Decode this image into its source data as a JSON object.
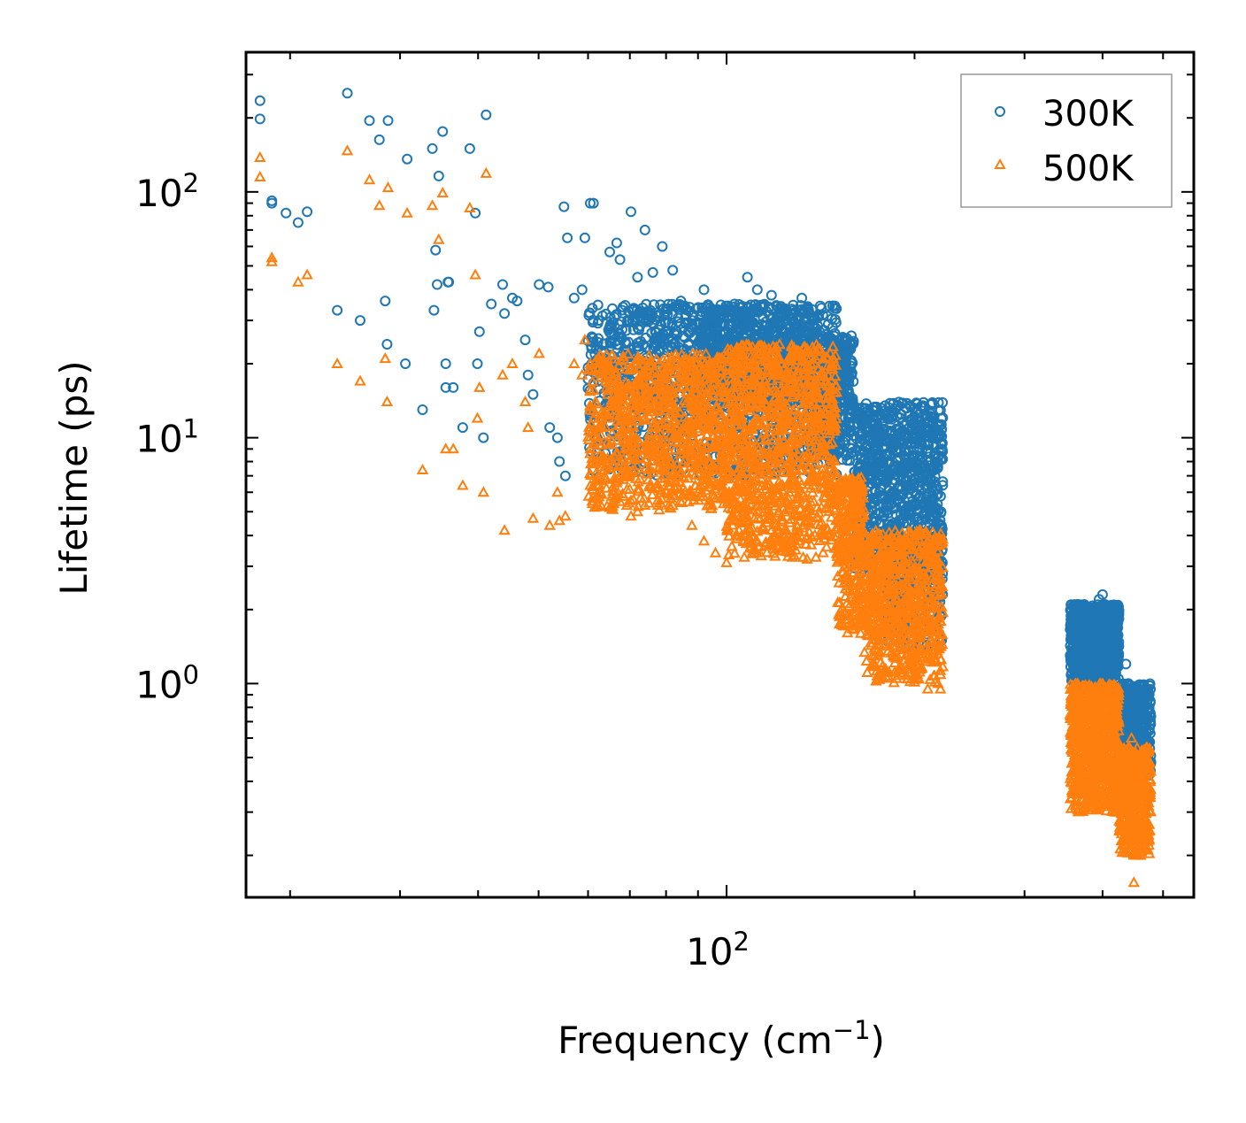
{
  "chart_data": {
    "type": "scatter",
    "title": "",
    "xlabel": "Frequency (cm",
    "xlabel_sup": "−1",
    "xlabel_close": ")",
    "ylabel": "Lifetime (ps)",
    "xscale": "log",
    "yscale": "log",
    "xlim": [
      17,
      560
    ],
    "ylim": [
      0.135,
      370
    ],
    "x_major_ticks": [
      {
        "value": 100,
        "base": "10",
        "exp": "2"
      }
    ],
    "y_major_ticks": [
      {
        "value": 1,
        "base": "10",
        "exp": "0"
      },
      {
        "value": 10,
        "base": "10",
        "exp": "1"
      },
      {
        "value": 100,
        "base": "10",
        "exp": "2"
      }
    ],
    "legend_position": "top-right",
    "series": [
      {
        "name": "300K",
        "marker": "circle",
        "color": "#1f77b4",
        "points": [
          [
            17.9,
            235
          ],
          [
            17.9,
            198
          ],
          [
            18.7,
            92
          ],
          [
            18.7,
            90
          ],
          [
            19.7,
            82
          ],
          [
            20.6,
            75
          ],
          [
            21.3,
            83
          ],
          [
            23.8,
            33
          ],
          [
            24.7,
            252
          ],
          [
            25.9,
            30
          ],
          [
            26.8,
            195
          ],
          [
            27.8,
            163
          ],
          [
            28.7,
            195
          ],
          [
            28.4,
            36
          ],
          [
            28.6,
            24
          ],
          [
            30.8,
            136
          ],
          [
            30.6,
            20
          ],
          [
            32.6,
            13
          ],
          [
            33.8,
            150
          ],
          [
            34.6,
            116
          ],
          [
            34.2,
            58
          ],
          [
            35.1,
            176
          ],
          [
            35.8,
            43
          ],
          [
            35.9,
            43
          ],
          [
            35.5,
            20
          ],
          [
            34.4,
            42
          ],
          [
            34.0,
            33
          ],
          [
            35.5,
            16
          ],
          [
            36.5,
            16
          ],
          [
            37.8,
            11
          ],
          [
            38.8,
            150
          ],
          [
            39.6,
            82
          ],
          [
            40.2,
            27
          ],
          [
            40.8,
            10
          ],
          [
            41.2,
            206
          ],
          [
            39.9,
            20
          ],
          [
            42.0,
            35
          ],
          [
            43.8,
            42
          ],
          [
            44.1,
            32
          ],
          [
            45.4,
            37
          ],
          [
            46.2,
            36
          ],
          [
            47.6,
            25
          ],
          [
            48.1,
            18
          ],
          [
            49.0,
            15
          ],
          [
            50.1,
            42
          ],
          [
            51.8,
            41
          ],
          [
            52.1,
            11
          ],
          [
            53.6,
            10
          ],
          [
            54.0,
            8
          ],
          [
            55.2,
            7
          ],
          [
            54.9,
            87
          ],
          [
            55.6,
            65
          ],
          [
            57.0,
            37
          ],
          [
            58.7,
            40
          ],
          [
            59.3,
            65
          ],
          [
            60.5,
            90
          ],
          [
            61.2,
            90
          ],
          [
            62.4,
            30
          ],
          [
            63.8,
            22
          ],
          [
            65.0,
            57
          ],
          [
            66.7,
            62
          ],
          [
            67.5,
            53
          ],
          [
            70.3,
            83
          ],
          [
            72.0,
            45
          ],
          [
            74.0,
            70
          ],
          [
            76.2,
            47
          ],
          [
            78.9,
            60
          ],
          [
            82.0,
            48
          ],
          [
            84.5,
            36
          ],
          [
            88.0,
            30
          ],
          [
            92.0,
            40
          ],
          [
            95.0,
            28
          ],
          [
            99.0,
            33
          ],
          [
            103.0,
            35
          ],
          [
            108.0,
            45
          ],
          [
            112.0,
            40
          ],
          [
            118.0,
            38
          ],
          [
            125.0,
            30
          ],
          [
            132.0,
            37
          ],
          [
            140.0,
            25
          ],
          [
            148.0,
            20
          ],
          [
            155.0,
            14
          ],
          [
            162.0,
            12
          ],
          [
            170.0,
            10
          ],
          [
            178.0,
            8
          ],
          [
            186.0,
            6
          ],
          [
            194.0,
            4.8
          ],
          [
            200.0,
            4.0
          ],
          [
            206.0,
            3.4
          ],
          [
            212.0,
            3.2
          ],
          [
            218.0,
            2.8
          ],
          [
            219.0,
            1.6
          ],
          [
            221.0,
            1.5
          ],
          [
            355,
            1.3
          ],
          [
            360,
            1.5
          ],
          [
            365,
            2.1
          ],
          [
            370,
            1.8
          ],
          [
            375,
            1.4
          ],
          [
            380,
            2.0
          ],
          [
            385,
            1.7
          ],
          [
            390,
            1.2
          ],
          [
            395,
            2.2
          ],
          [
            400,
            2.3
          ],
          [
            405,
            1.9
          ],
          [
            410,
            1.6
          ],
          [
            415,
            1.4
          ],
          [
            420,
            1.1
          ],
          [
            425,
            1.0
          ],
          [
            428,
            0.85
          ],
          [
            432,
            0.75
          ],
          [
            436,
            1.2
          ],
          [
            440,
            1.0
          ],
          [
            445,
            0.8
          ],
          [
            450,
            0.7
          ],
          [
            455,
            0.6
          ],
          [
            460,
            0.5
          ],
          [
            465,
            0.55
          ],
          [
            470,
            0.6
          ],
          [
            475,
            0.58
          ]
        ],
        "clouds": [
          {
            "x_from": 60,
            "x_to": 150,
            "y_lo": 7,
            "y_hi": 35,
            "count": 1300
          },
          {
            "x_from": 90,
            "x_to": 140,
            "y_lo": 14,
            "y_hi": 35,
            "count": 500
          },
          {
            "x_from": 140,
            "x_to": 160,
            "y_lo": 8,
            "y_hi": 26,
            "count": 350
          },
          {
            "x_from": 160,
            "x_to": 222,
            "y_lo": 2.8,
            "y_hi": 14,
            "count": 900
          },
          {
            "x_from": 180,
            "x_to": 222,
            "y_lo": 1.4,
            "y_hi": 4,
            "count": 250
          },
          {
            "x_from": 355,
            "x_to": 425,
            "y_lo": 1.0,
            "y_hi": 2.1,
            "count": 900
          },
          {
            "x_from": 425,
            "x_to": 478,
            "y_lo": 0.42,
            "y_hi": 1.0,
            "count": 500
          }
        ]
      },
      {
        "name": "500K",
        "marker": "triangle",
        "color": "#ff7f0e",
        "points": [
          [
            17.9,
            138
          ],
          [
            17.9,
            115
          ],
          [
            18.7,
            54
          ],
          [
            18.7,
            52
          ],
          [
            20.6,
            43
          ],
          [
            21.3,
            46
          ],
          [
            23.8,
            20
          ],
          [
            24.7,
            147
          ],
          [
            25.9,
            17
          ],
          [
            26.8,
            112
          ],
          [
            27.8,
            88
          ],
          [
            28.7,
            104
          ],
          [
            28.4,
            21
          ],
          [
            28.6,
            14
          ],
          [
            30.8,
            82
          ],
          [
            32.6,
            7.4
          ],
          [
            33.8,
            88
          ],
          [
            34.6,
            64
          ],
          [
            35.1,
            99
          ],
          [
            35.5,
            9
          ],
          [
            36.5,
            9
          ],
          [
            37.8,
            6.4
          ],
          [
            38.8,
            86
          ],
          [
            39.6,
            46
          ],
          [
            40.2,
            16
          ],
          [
            40.8,
            6
          ],
          [
            41.2,
            119
          ],
          [
            39.9,
            12
          ],
          [
            43.8,
            18
          ],
          [
            44.1,
            4.2
          ],
          [
            45.4,
            20
          ],
          [
            47.6,
            14
          ],
          [
            48.1,
            11
          ],
          [
            49.0,
            4.7
          ],
          [
            50.1,
            22
          ],
          [
            52.1,
            4.4
          ],
          [
            53.6,
            6
          ],
          [
            54.0,
            4.6
          ],
          [
            55.2,
            4.8
          ],
          [
            57.0,
            20
          ],
          [
            58.7,
            18
          ],
          [
            59.3,
            25
          ],
          [
            60.5,
            9
          ],
          [
            62.4,
            12
          ],
          [
            63.8,
            7
          ],
          [
            65.0,
            5.2
          ],
          [
            67.5,
            5.5
          ],
          [
            70.3,
            4.8
          ],
          [
            72.0,
            5.0
          ],
          [
            76.2,
            6.2
          ],
          [
            82.0,
            5.3
          ],
          [
            88.0,
            4.4
          ],
          [
            92.0,
            3.8
          ],
          [
            96.0,
            3.4
          ],
          [
            100.0,
            3.1
          ],
          [
            106.0,
            4.5
          ],
          [
            112.0,
            5.0
          ],
          [
            118.0,
            4.2
          ],
          [
            125.0,
            5.5
          ],
          [
            132.0,
            4.8
          ],
          [
            145.0,
            21
          ],
          [
            150.0,
            6.0
          ],
          [
            156.0,
            3.3
          ],
          [
            160.0,
            2.0
          ],
          [
            164.0,
            1.6
          ],
          [
            170.0,
            2.2
          ],
          [
            178.0,
            1.9
          ],
          [
            190.0,
            1.4
          ],
          [
            200.0,
            1.1
          ],
          [
            210.0,
            0.95
          ],
          [
            218.0,
            1.0
          ],
          [
            220.0,
            0.95
          ],
          [
            355,
            0.75
          ],
          [
            360,
            0.9
          ],
          [
            365,
            1.0
          ],
          [
            370,
            0.7
          ],
          [
            375,
            0.9
          ],
          [
            380,
            0.6
          ],
          [
            385,
            0.45
          ],
          [
            390,
            0.35
          ],
          [
            395,
            0.9
          ],
          [
            400,
            1.0
          ],
          [
            405,
            0.8
          ],
          [
            410,
            0.55
          ],
          [
            415,
            0.4
          ],
          [
            420,
            0.3
          ],
          [
            425,
            0.35
          ],
          [
            432,
            0.3
          ],
          [
            436,
            0.3
          ],
          [
            440,
            0.5
          ],
          [
            445,
            0.6
          ],
          [
            450,
            0.35
          ],
          [
            455,
            0.25
          ],
          [
            460,
            0.2
          ],
          [
            465,
            0.22
          ],
          [
            470,
            0.3
          ],
          [
            475,
            0.35
          ],
          [
            449,
            0.155
          ]
        ],
        "clouds": [
          {
            "x_from": 60,
            "x_to": 100,
            "y_lo": 5,
            "y_hi": 22,
            "count": 900
          },
          {
            "x_from": 100,
            "x_to": 150,
            "y_lo": 3.2,
            "y_hi": 24,
            "count": 1100
          },
          {
            "x_from": 150,
            "x_to": 166,
            "y_lo": 1.6,
            "y_hi": 7,
            "count": 300
          },
          {
            "x_from": 166,
            "x_to": 222,
            "y_lo": 1.0,
            "y_hi": 4.2,
            "count": 700
          },
          {
            "x_from": 355,
            "x_to": 425,
            "y_lo": 0.3,
            "y_hi": 1.0,
            "count": 800
          },
          {
            "x_from": 425,
            "x_to": 478,
            "y_lo": 0.2,
            "y_hi": 0.55,
            "count": 450
          }
        ]
      }
    ]
  }
}
